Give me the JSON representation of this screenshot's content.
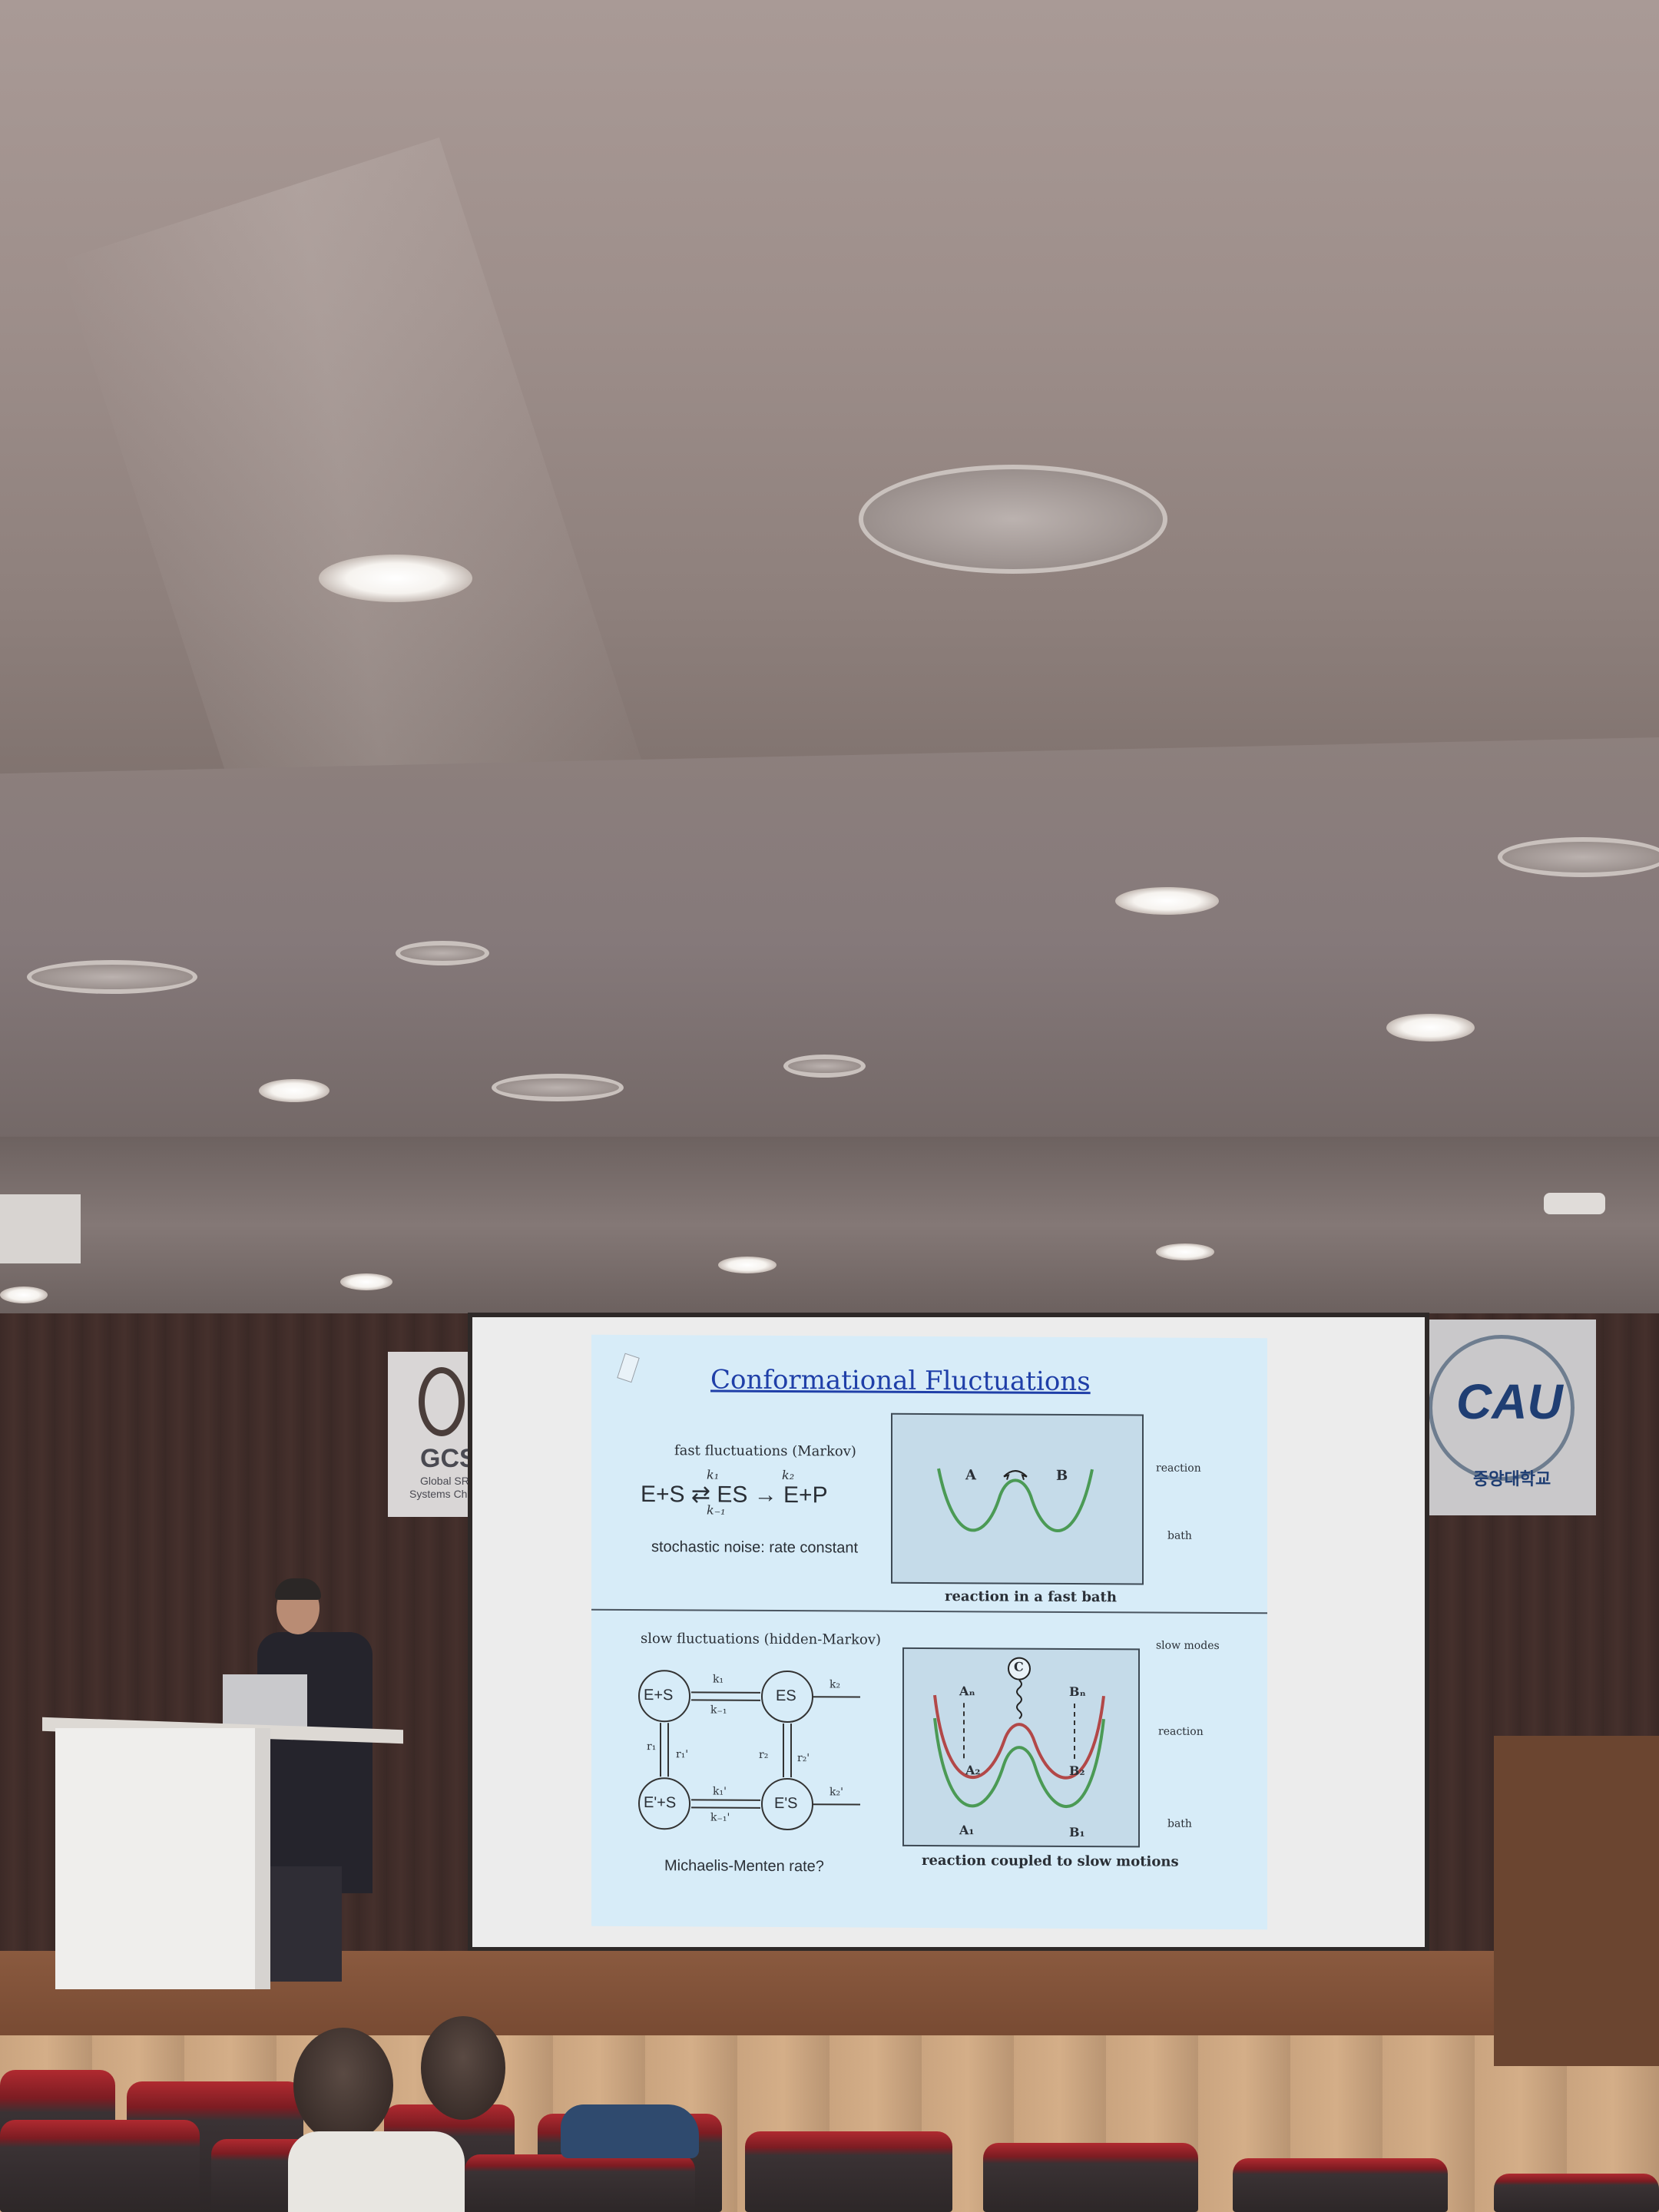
{
  "scene": {
    "description_free": true
  },
  "banners": {
    "left_text": "GCS",
    "left_sub1": "Global SRC",
    "left_sub2": "Systems Che",
    "right_logo": "CAU",
    "right_sub": "중앙대학교"
  },
  "slide": {
    "title": "Conformational Fluctuations",
    "top_left_heading": "fast fluctuations (Markov)",
    "top_left_reaction": "E+S ⇄ ES → E+P",
    "top_left_k1": "k₁",
    "top_left_km1": "k₋₁",
    "top_left_k2": "k₂",
    "top_left_caption": "stochastic noise: rate constant",
    "top_right_label_a": "A",
    "top_right_label_b": "B",
    "top_right_reaction": "reaction",
    "top_right_bath": "bath",
    "top_right_caption": "reaction in a fast bath",
    "bottom_left_heading": "slow fluctuations (hidden-Markov)",
    "bottom_left_es": "E+S",
    "bottom_left_es2": "ES",
    "bottom_left_eps": "E'+S",
    "bottom_left_eps2": "E'S",
    "bottom_left_k1": "k₁",
    "bottom_left_km1": "k₋₁",
    "bottom_left_k2": "k₂",
    "bottom_left_r1": "r₁",
    "bottom_left_r1p": "r₁'",
    "bottom_left_r2": "r₂",
    "bottom_left_r2p": "r₂'",
    "bottom_left_k1p": "k₁'",
    "bottom_left_km1p": "k₋₁'",
    "bottom_left_k2p": "k₂'",
    "bottom_left_caption": "Michaelis-Menten rate?",
    "bottom_right_c": "C",
    "bottom_right_an": "Aₙ",
    "bottom_right_bn": "Bₙ",
    "bottom_right_a2": "A₂",
    "bottom_right_b2": "B₂",
    "bottom_right_a1": "A₁",
    "bottom_right_b1": "B₁",
    "bottom_right_slow": "slow modes",
    "bottom_right_reaction": "reaction",
    "bottom_right_bath": "bath",
    "bottom_right_caption": "reaction coupled to slow motions"
  }
}
